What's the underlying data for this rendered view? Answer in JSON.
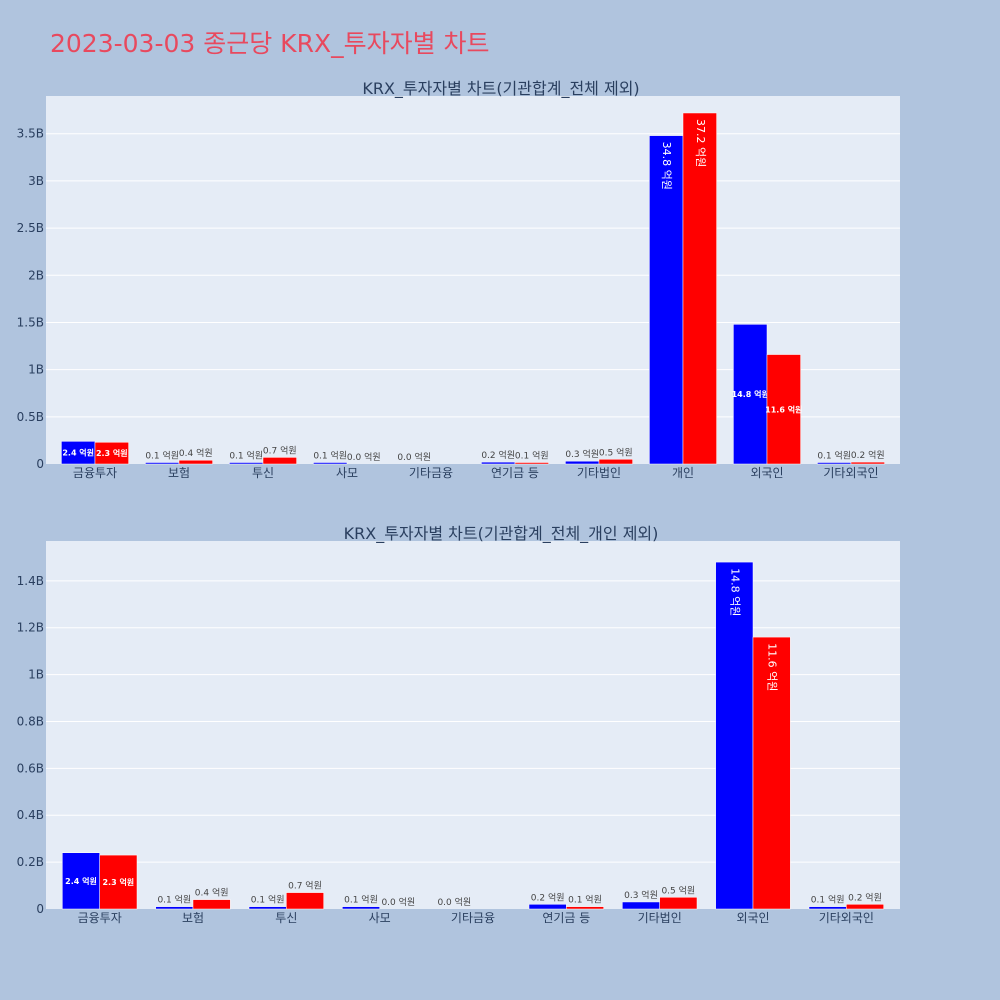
{
  "page_title": "2023-03-03 종근당 KRX_투자자별 차트",
  "colors": {
    "buy": "#0000ff",
    "sell": "#ff0000",
    "plot_bg": "#e5ecf6",
    "page_bg": "#b0c4de",
    "title": "#e8495e"
  },
  "chart_data": [
    {
      "type": "bar",
      "title": "KRX_투자자별 차트(기관합계_전체 제외)",
      "categories": [
        "금융투자",
        "보험",
        "투신",
        "사모",
        "기타금융",
        "연기금 등",
        "기타법인",
        "개인",
        "외국인",
        "기타외국인"
      ],
      "series": [
        {
          "color": "#0000ff",
          "values": [
            0.24,
            0.01,
            0.01,
            0.01,
            0.0,
            0.02,
            0.03,
            3.48,
            1.48,
            0.01
          ],
          "labels": [
            "2.4 억원",
            "0.1 억원",
            "0.1 억원",
            "0.1 억원",
            "0.0 억원",
            "0.2 억원",
            "0.3 억원",
            "34.8 억원",
            "14.8 억원",
            "0.1 억원"
          ]
        },
        {
          "color": "#ff0000",
          "values": [
            0.23,
            0.04,
            0.07,
            0.0,
            0.0,
            0.01,
            0.05,
            3.72,
            1.16,
            0.02
          ],
          "labels": [
            "2.3 억원",
            "0.4 억원",
            "0.7 억원",
            "0.0 억원",
            "",
            "0.1 억원",
            "0.5 억원",
            "37.2 억원",
            "11.6 억원",
            "0.2 억원"
          ]
        }
      ],
      "ylim": [
        0,
        3.9
      ],
      "yticks": [
        0,
        0.5,
        1,
        1.5,
        2,
        2.5,
        3,
        3.5
      ],
      "ytick_labels": [
        "0",
        "0.5B",
        "1B",
        "1.5B",
        "2B",
        "2.5B",
        "3B",
        "3.5B"
      ],
      "grid": true
    },
    {
      "type": "bar",
      "title": "KRX_투자자별 차트(기관합계_전체_개인 제외)",
      "categories": [
        "금융투자",
        "보험",
        "투신",
        "사모",
        "기타금융",
        "연기금 등",
        "기타법인",
        "외국인",
        "기타외국인"
      ],
      "series": [
        {
          "color": "#0000ff",
          "values": [
            0.24,
            0.01,
            0.01,
            0.01,
            0.0,
            0.02,
            0.03,
            1.48,
            0.01
          ],
          "labels": [
            "2.4 억원",
            "0.1 억원",
            "0.1 억원",
            "0.1 억원",
            "0.0 억원",
            "0.2 억원",
            "0.3 억원",
            "14.8 억원",
            "0.1 억원"
          ]
        },
        {
          "color": "#ff0000",
          "values": [
            0.23,
            0.04,
            0.07,
            0.0,
            0.0,
            0.01,
            0.05,
            1.16,
            0.02
          ],
          "labels": [
            "2.3 억원",
            "0.4 억원",
            "0.7 억원",
            "0.0 억원",
            "",
            "0.1 억원",
            "0.5 억원",
            "11.6 억원",
            "0.2 억원"
          ]
        }
      ],
      "ylim": [
        0,
        1.57
      ],
      "yticks": [
        0,
        0.2,
        0.4,
        0.6,
        0.8,
        1,
        1.2,
        1.4
      ],
      "ytick_labels": [
        "0",
        "0.2B",
        "0.4B",
        "0.6B",
        "0.8B",
        "1B",
        "1.2B",
        "1.4B"
      ],
      "grid": true
    }
  ]
}
